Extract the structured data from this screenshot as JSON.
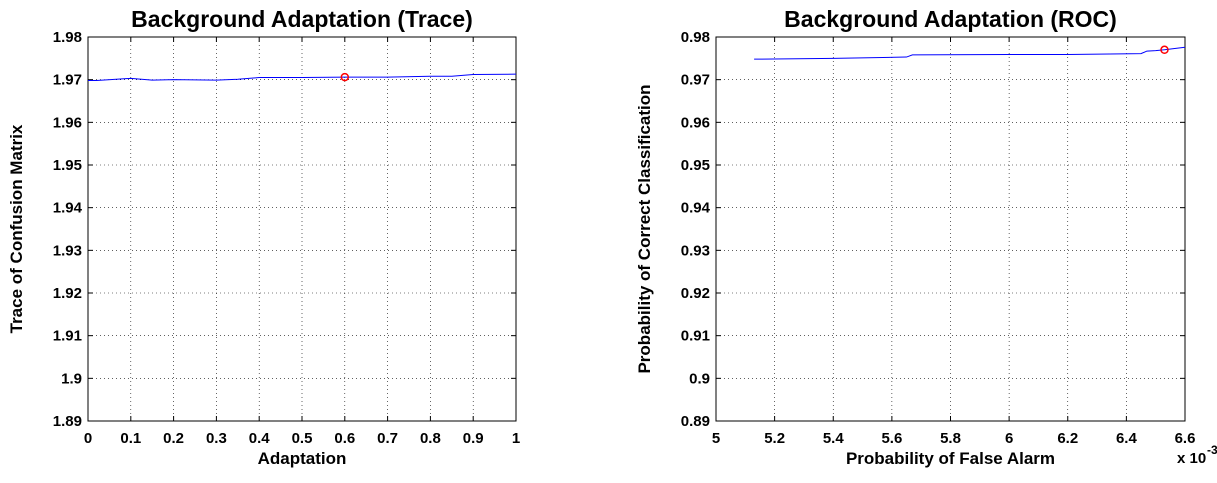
{
  "chart_data": [
    {
      "type": "line",
      "title": "Background Adaptation (Trace)",
      "x_label": "Adaptation",
      "y_label": "Trace of Confusion Matrix",
      "x": [
        0,
        0.02,
        0.1,
        0.15,
        0.2,
        0.3,
        0.35,
        0.4,
        0.5,
        0.6,
        0.7,
        0.8,
        0.85,
        0.9,
        1
      ],
      "values": [
        1.9698,
        1.9698,
        1.9703,
        1.9699,
        1.97,
        1.9699,
        1.9701,
        1.9705,
        1.9705,
        1.9706,
        1.9706,
        1.9708,
        1.9708,
        1.9712,
        1.9713
      ],
      "color": "#0000ff",
      "marker": {
        "x": 0.6,
        "y": 1.9706,
        "color": "#ff0000"
      },
      "xlim": [
        0,
        1
      ],
      "xticks": [
        0,
        0.1,
        0.2,
        0.3,
        0.4,
        0.5,
        0.6,
        0.7,
        0.8,
        0.9,
        1
      ],
      "ylim": [
        1.89,
        1.98
      ],
      "yticks": [
        1.89,
        1.9,
        1.91,
        1.92,
        1.93,
        1.94,
        1.95,
        1.96,
        1.97,
        1.98
      ],
      "grid": true
    },
    {
      "type": "line",
      "title": "Background Adaptation (ROC)",
      "x_label": "Probability of False Alarm",
      "y_label": "Probability of Correct Classification",
      "x_multiplier": "x 10",
      "x_exponent": "-3",
      "x": [
        5.13,
        5.4,
        5.65,
        5.67,
        6.0,
        6.2,
        6.45,
        6.47,
        6.5,
        6.53,
        6.6
      ],
      "values": [
        0.9748,
        0.975,
        0.9753,
        0.9758,
        0.9759,
        0.9759,
        0.9761,
        0.9767,
        0.9768,
        0.977,
        0.9776
      ],
      "color": "#0000ff",
      "marker": {
        "x": 6.53,
        "y": 0.977,
        "color": "#ff0000"
      },
      "xlim": [
        5,
        6.6
      ],
      "xticks": [
        5,
        5.2,
        5.4,
        5.6,
        5.8,
        6,
        6.2,
        6.4,
        6.6
      ],
      "ylim": [
        0.89,
        0.98
      ],
      "yticks": [
        0.89,
        0.9,
        0.91,
        0.92,
        0.93,
        0.94,
        0.95,
        0.96,
        0.97,
        0.98
      ],
      "grid": true
    }
  ]
}
